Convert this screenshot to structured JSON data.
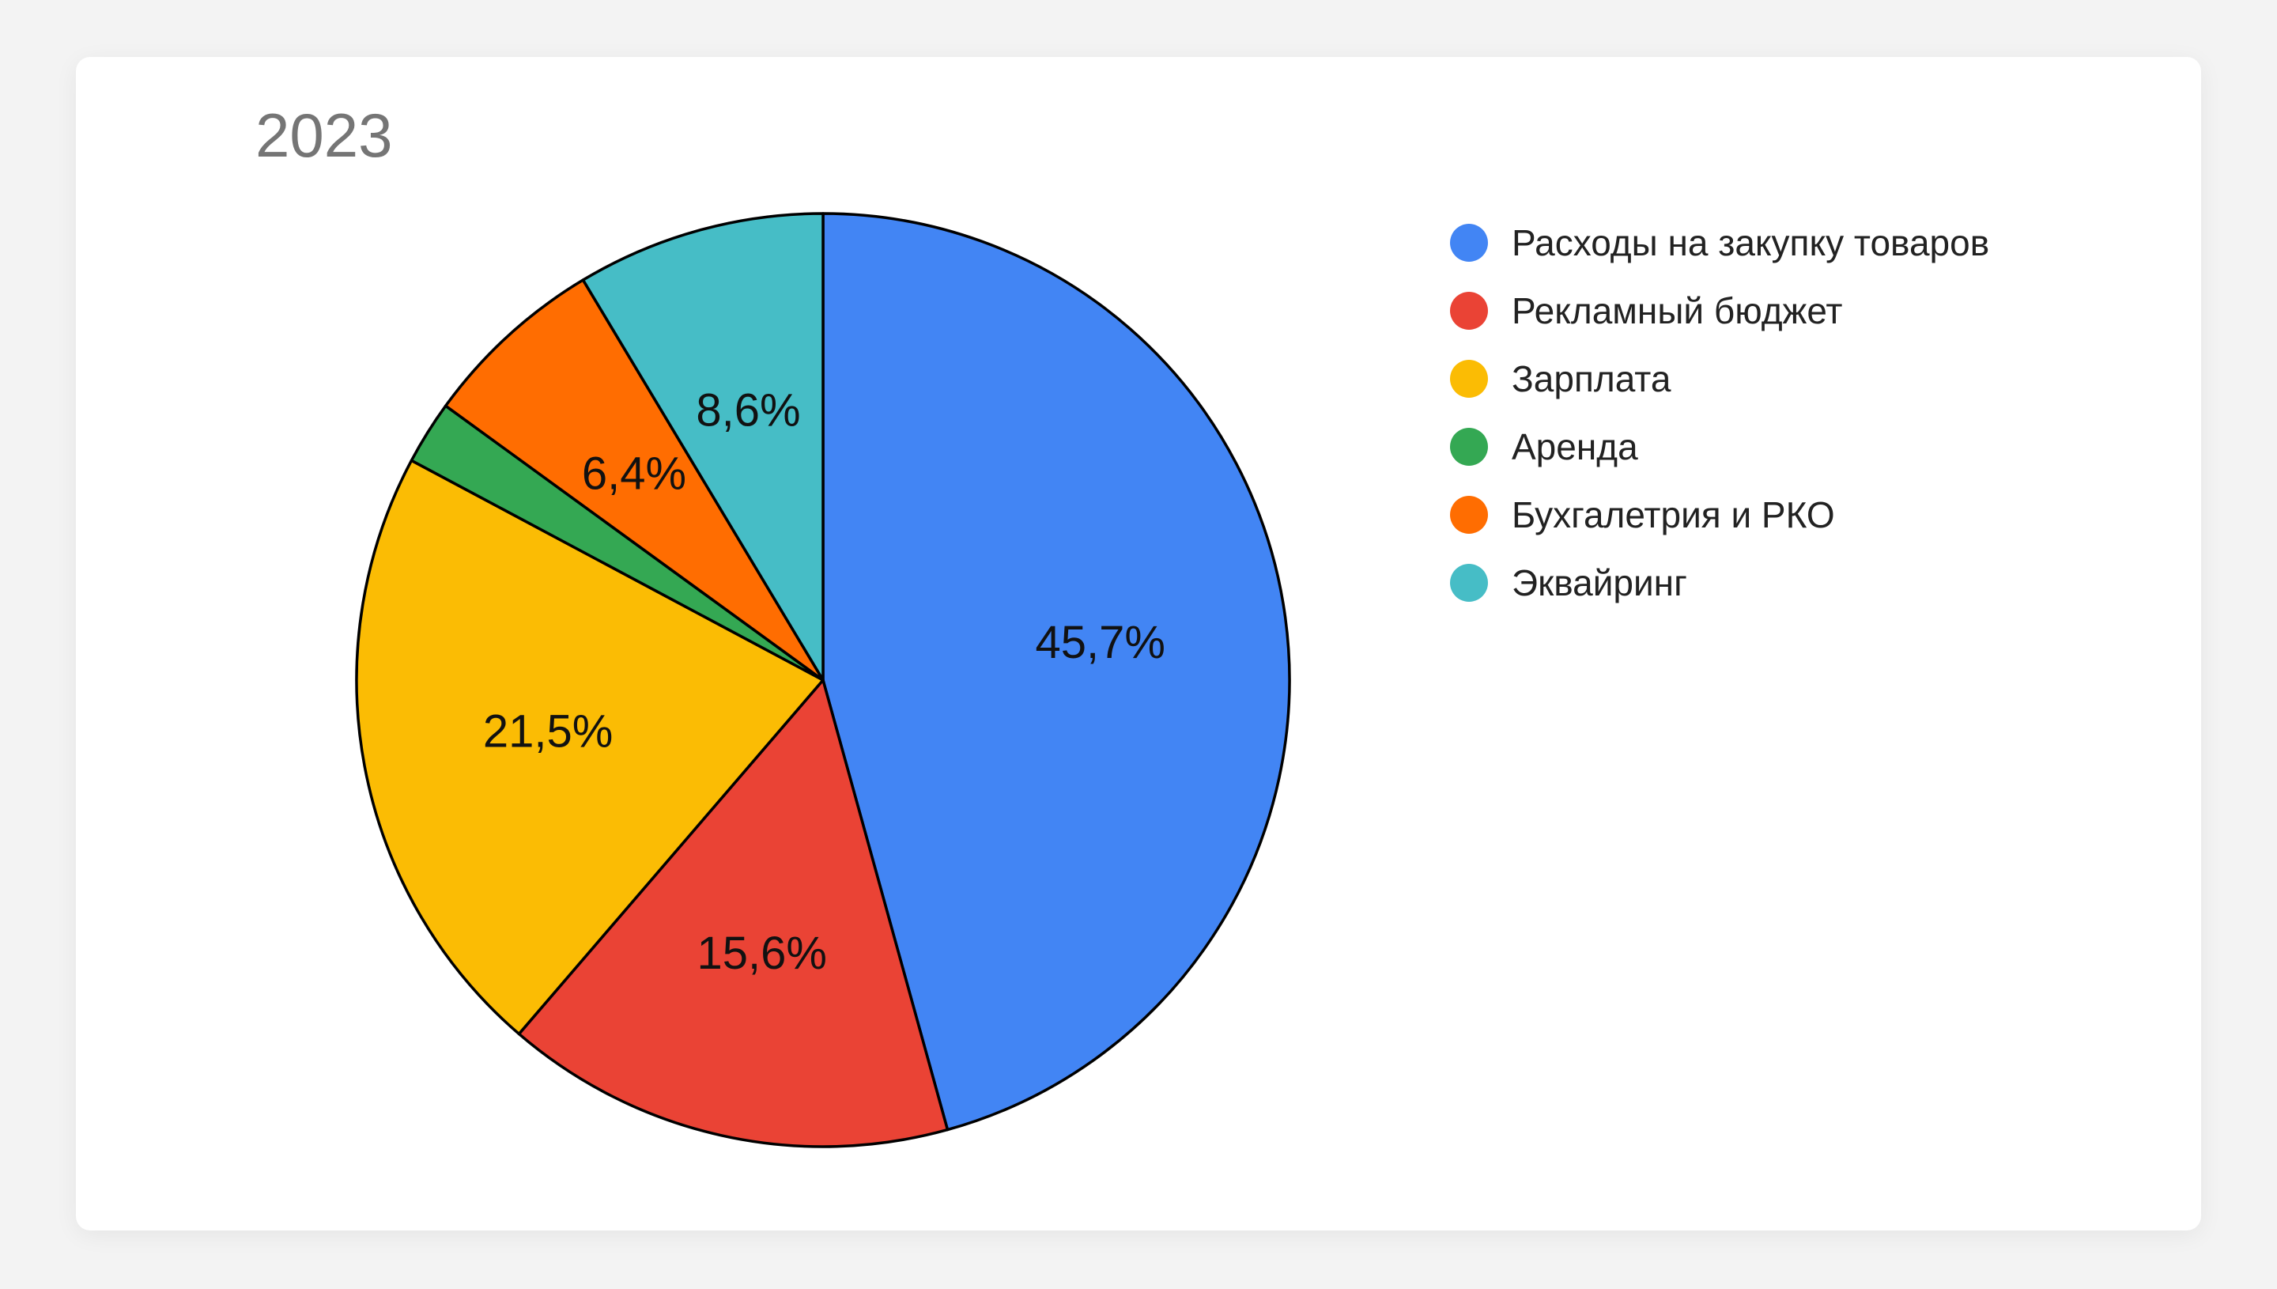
{
  "chart_data": {
    "type": "pie",
    "title": "2023",
    "categories": [
      "Расходы на закупку товаров",
      "Рекламный бюджет",
      "Зарплата",
      "Аренда",
      "Бухгалетрия и РКО",
      "Эквайринг"
    ],
    "values": [
      45.7,
      15.6,
      21.5,
      2.2,
      6.4,
      8.6
    ],
    "data_labels": [
      "45,7%",
      "15,6%",
      "21,5%",
      "",
      "6,4%",
      "8,6%"
    ],
    "colors": [
      "#4285f4",
      "#ea4335",
      "#fbbc04",
      "#34a853",
      "#ff6d01",
      "#46bdc6"
    ],
    "legend_position": "right",
    "start_angle": "top, clockwise"
  }
}
